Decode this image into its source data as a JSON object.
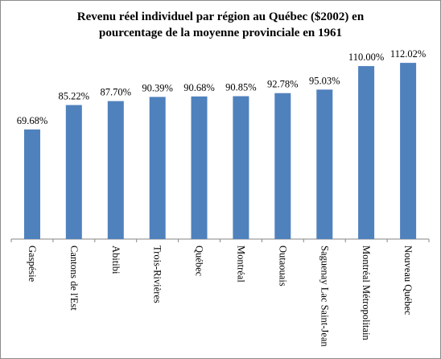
{
  "chart_data": {
    "type": "bar",
    "title_lines": [
      "Revenu réel individuel par région au Québec  ($2002)  en",
      "pourcentage de la moyenne provinciale en 1961"
    ],
    "categories": [
      "Gaspésie",
      "Cantons de l'Est",
      "Abitibi",
      "Trois-Rivières",
      "Québec",
      "Montréal",
      "Outaouais",
      "Saguenay Lac Saint-Jean",
      "Montréal Métropolitain",
      "Nouveau Québec"
    ],
    "values": [
      69.68,
      85.22,
      87.7,
      90.39,
      90.68,
      90.85,
      92.78,
      95.03,
      110.0,
      112.02
    ],
    "value_labels": [
      "69.68%",
      "85.22%",
      "87.70%",
      "90.39%",
      "90.68%",
      "90.85%",
      "92.78%",
      "95.03%",
      "110.00%",
      "112.02%"
    ],
    "bar_color": "#4f81bd",
    "axis_color": "#868686",
    "grid": false,
    "legend": "none"
  }
}
